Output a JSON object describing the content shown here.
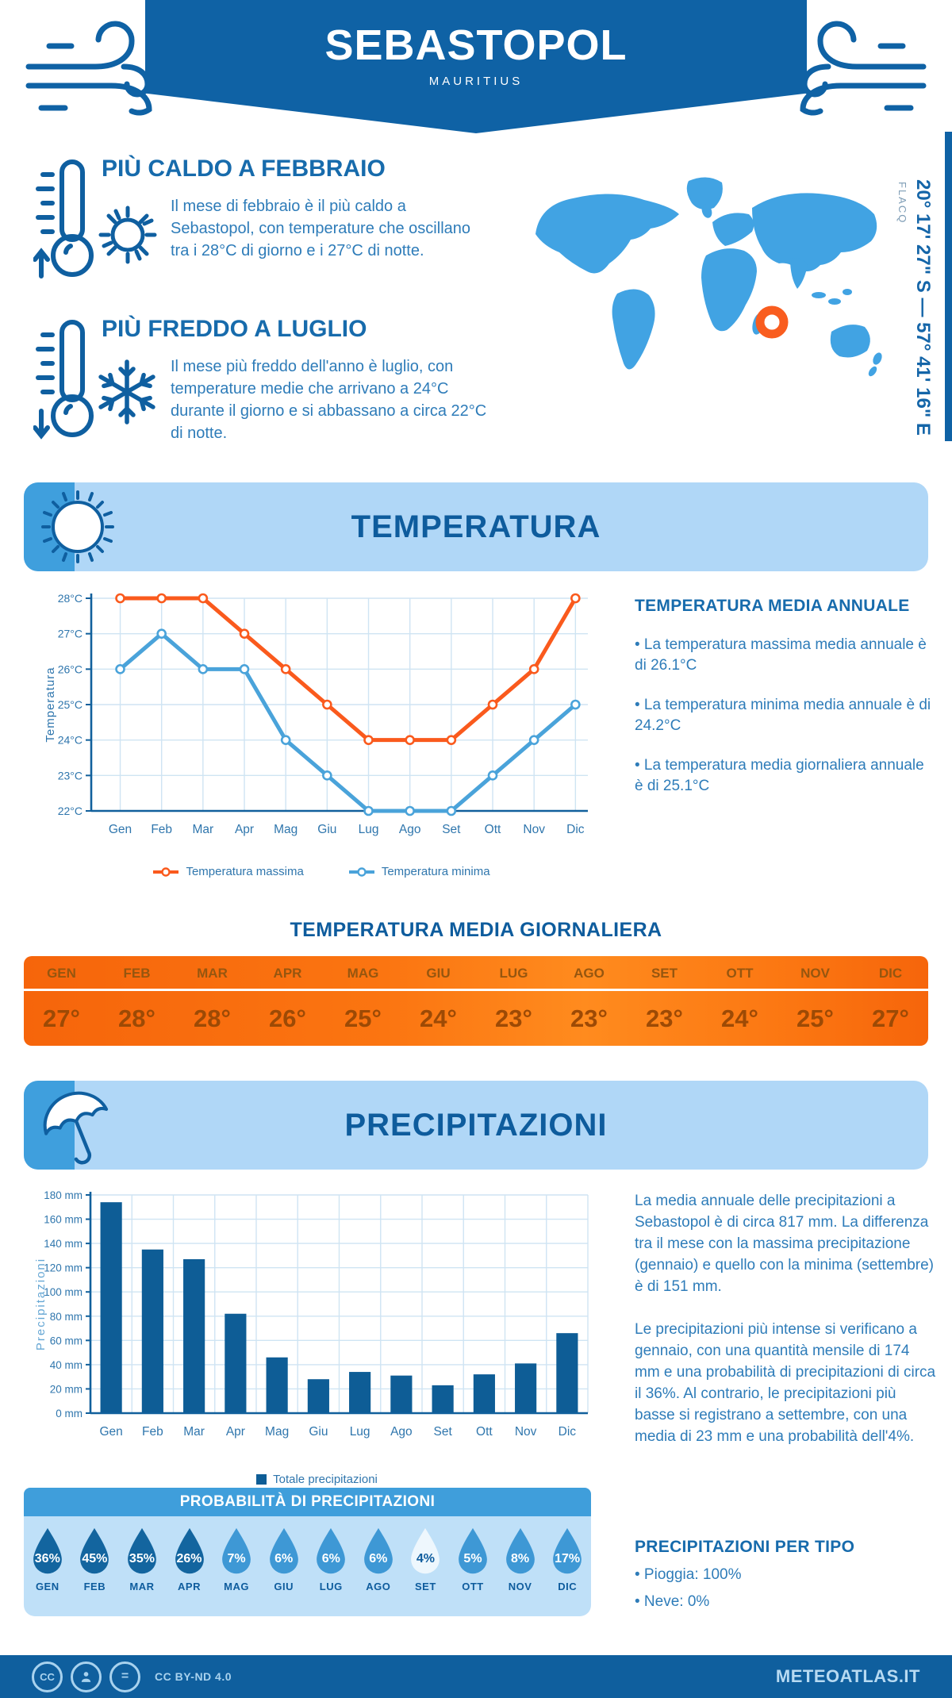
{
  "header": {
    "title": "SEBASTOPOL",
    "subtitle": "MAURITIUS"
  },
  "intro": {
    "warmest": {
      "heading": "PIÙ CALDO A FEBBRAIO",
      "text": "Il mese di febbraio è il più caldo a Sebastopol, con temperature che oscillano tra i 28°C di giorno e i 27°C di notte."
    },
    "coldest": {
      "heading": "PIÙ FREDDO A LUGLIO",
      "text": "Il mese più freddo dell'anno è luglio, con temperature medie che arrivano a 24°C durante il giorno e si abbassano a circa 22°C di notte."
    }
  },
  "map": {
    "region": "FLACQ",
    "coordinates": "20° 17' 27\" S — 57° 41' 16\" E",
    "land_color": "#41a3e3",
    "marker_color": "#f95d1f"
  },
  "temperature_section": {
    "banner_title": "TEMPERATURA",
    "annual_heading": "TEMPERATURA MEDIA ANNUALE",
    "annual_bullets": [
      "• La temperatura massima media annuale è di 26.1°C",
      "• La temperatura minima media annuale è di 24.2°C",
      "• La temperatura media giornaliera annuale è di 25.1°C"
    ],
    "daily_heading": "TEMPERATURA MEDIA GIORNALIERA",
    "daily_months": [
      "GEN",
      "FEB",
      "MAR",
      "APR",
      "MAG",
      "GIU",
      "LUG",
      "AGO",
      "SET",
      "OTT",
      "NOV",
      "DIC"
    ],
    "daily_values": [
      "27°",
      "28°",
      "28°",
      "26°",
      "25°",
      "24°",
      "23°",
      "23°",
      "23°",
      "24°",
      "25°",
      "27°"
    ]
  },
  "precipitation_section": {
    "banner_title": "PRECIPITAZIONI",
    "paragraphs": [
      "La media annuale delle precipitazioni a Sebastopol è di circa 817 mm. La differenza tra il mese con la massima precipitazione (gennaio) e quello con la minima (settembre) è di 151 mm.",
      "Le precipitazioni più intense si verificano a gennaio, con una quantità mensile di 174 mm e una probabilità di precipitazioni di circa il 36%. Al contrario, le precipitazioni più basse si registrano a settembre, con una media di 23 mm e una probabilità dell'4%."
    ],
    "type_heading": "PRECIPITAZIONI PER TIPO",
    "type_bullets": [
      "• Pioggia: 100%",
      "• Neve: 0%"
    ]
  },
  "probability": {
    "heading": "PROBABILITÀ DI PRECIPITAZIONI",
    "months": [
      "GEN",
      "FEB",
      "MAR",
      "APR",
      "MAG",
      "GIU",
      "LUG",
      "AGO",
      "SET",
      "OTT",
      "NOV",
      "DIC"
    ],
    "values": [
      "36%",
      "45%",
      "35%",
      "26%",
      "7%",
      "6%",
      "6%",
      "6%",
      "4%",
      "5%",
      "8%",
      "17%"
    ],
    "drop_styles": [
      "dark",
      "dark",
      "dark",
      "dark",
      "mid",
      "mid",
      "mid",
      "mid",
      "pale",
      "mid",
      "mid",
      "mid"
    ],
    "colors": {
      "dark": "#13659f",
      "mid": "#3e98d5",
      "pale": "#eef7fd"
    },
    "text_colors": {
      "dark": "#ffffff",
      "mid": "#ffffff",
      "pale": "#0e5c9d"
    }
  },
  "chart_data": [
    {
      "type": "line",
      "title": "",
      "categories": [
        "Gen",
        "Feb",
        "Mar",
        "Apr",
        "Mag",
        "Giu",
        "Lug",
        "Ago",
        "Set",
        "Ott",
        "Nov",
        "Dic"
      ],
      "series": [
        {
          "name": "Temperatura massima",
          "color": "#fa5a1d",
          "values": [
            28,
            28,
            28,
            27,
            26,
            25,
            24,
            24,
            24,
            25,
            26,
            28
          ]
        },
        {
          "name": "Temperatura minima",
          "color": "#4aa3da",
          "values": [
            26,
            27,
            26,
            26,
            24,
            23,
            22,
            22,
            22,
            23,
            24,
            25
          ]
        }
      ],
      "xlabel": "",
      "ylabel": "Temperatura",
      "ylim": [
        22,
        28
      ],
      "ytick_step": 1,
      "ytick_suffix": "°C",
      "grid": true,
      "legend_position": "bottom"
    },
    {
      "type": "bar",
      "title": "",
      "categories": [
        "Gen",
        "Feb",
        "Mar",
        "Apr",
        "Mag",
        "Giu",
        "Lug",
        "Ago",
        "Set",
        "Ott",
        "Nov",
        "Dic"
      ],
      "series": [
        {
          "name": "Totale precipitazioni",
          "color": "#0e5d96",
          "values": [
            174,
            135,
            127,
            82,
            46,
            28,
            34,
            31,
            23,
            32,
            41,
            66
          ]
        }
      ],
      "xlabel": "",
      "ylabel": "Precipitazioni",
      "ylim": [
        0,
        180
      ],
      "ytick_step": 20,
      "ytick_suffix": " mm",
      "grid": true,
      "legend_position": "bottom"
    }
  ],
  "footer": {
    "license": "CC BY-ND 4.0",
    "site": "METEOATLAS.IT"
  }
}
